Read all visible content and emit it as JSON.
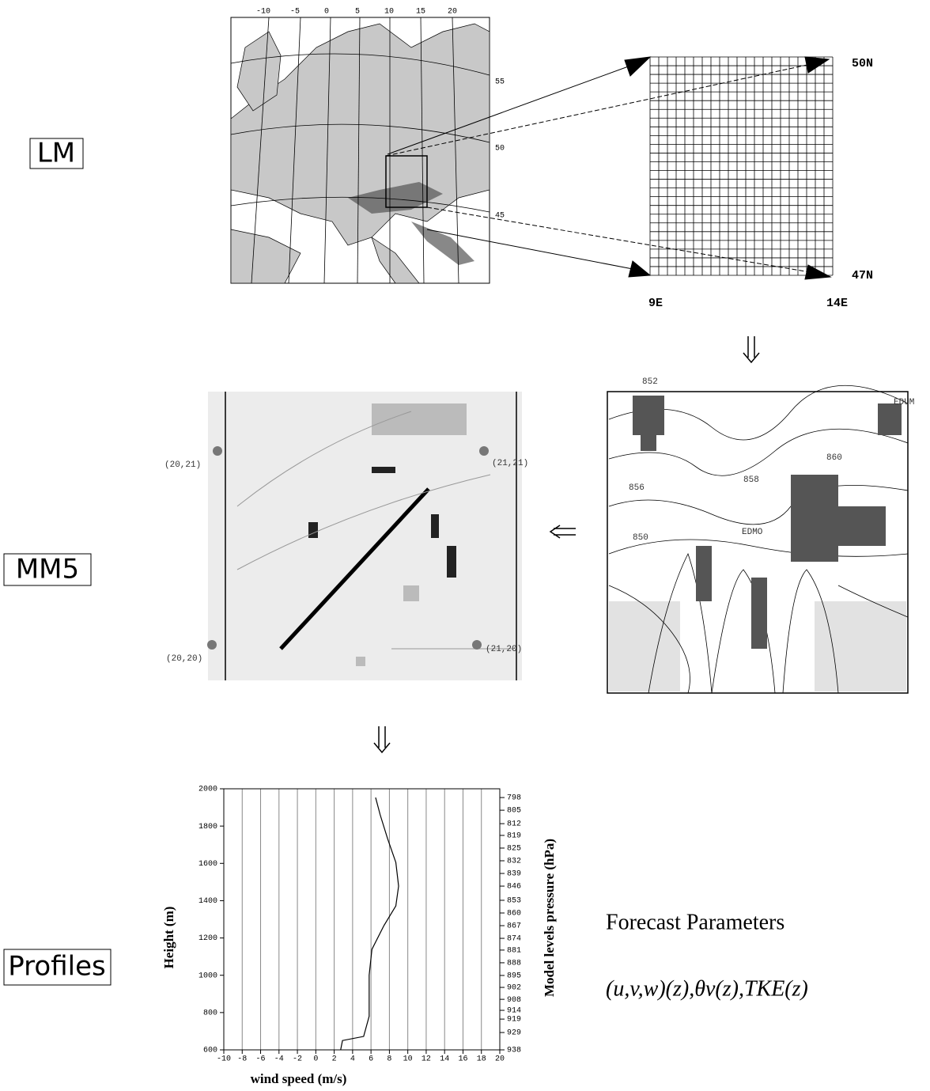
{
  "labels": {
    "lm": "LM",
    "mm5": "MM5",
    "profiles": "Profiles"
  },
  "lm_map": {
    "lon_labels": [
      "-10",
      "-5",
      "0",
      "5",
      "10",
      "15",
      "20"
    ],
    "lat_labels": [
      "55",
      "50",
      "45"
    ]
  },
  "grid": {
    "north": "50N",
    "south": "47N",
    "west": "9E",
    "east": "14E"
  },
  "contour": {
    "labels": [
      "852",
      "856",
      "858",
      "860",
      "850",
      "EDMO",
      "EDUM"
    ]
  },
  "mm5_map": {
    "corners": [
      "(20,21)",
      "(21,21)",
      "(20,20)",
      "(21,20)"
    ]
  },
  "forecast": {
    "title": "Forecast Parameters",
    "formula": "(u,v,w)(z),θv(z),TKE(z)"
  },
  "chart_data": {
    "type": "line",
    "xlabel": "wind speed (m/s)",
    "ylabel": "Height (m)",
    "y2label": "Model levels pressure (hPa)",
    "xlim": [
      -10,
      20
    ],
    "xticks": [
      -10,
      -8,
      -6,
      -4,
      -2,
      0,
      2,
      4,
      6,
      8,
      10,
      12,
      14,
      16,
      18,
      20
    ],
    "ylim": [
      600,
      2000
    ],
    "yticks": [
      600,
      800,
      1000,
      1200,
      1400,
      1600,
      1800,
      2000
    ],
    "y2ticks": [
      {
        "value": 1953,
        "label": "798"
      },
      {
        "value": 1885,
        "label": "805"
      },
      {
        "value": 1813,
        "label": "812"
      },
      {
        "value": 1750,
        "label": "819"
      },
      {
        "value": 1682,
        "label": "825"
      },
      {
        "value": 1614,
        "label": "832"
      },
      {
        "value": 1546,
        "label": "839"
      },
      {
        "value": 1478,
        "label": "846"
      },
      {
        "value": 1402,
        "label": "853"
      },
      {
        "value": 1334,
        "label": "860"
      },
      {
        "value": 1266,
        "label": "867"
      },
      {
        "value": 1198,
        "label": "874"
      },
      {
        "value": 1135,
        "label": "881"
      },
      {
        "value": 1067,
        "label": "888"
      },
      {
        "value": 999,
        "label": "895"
      },
      {
        "value": 935,
        "label": "902"
      },
      {
        "value": 871,
        "label": "908"
      },
      {
        "value": 812,
        "label": "914"
      },
      {
        "value": 765,
        "label": "919"
      },
      {
        "value": 693,
        "label": "929"
      },
      {
        "value": 600,
        "label": "938"
      }
    ],
    "grid": true,
    "color": "#000000",
    "x": [
      2.7,
      2.9,
      5.2,
      5.8,
      5.8,
      6.1,
      7.4,
      8.7,
      9.0,
      8.7,
      7.8,
      7.0,
      6.5
    ],
    "y": [
      600,
      650,
      672,
      780,
      1000,
      1139,
      1266,
      1372,
      1478,
      1605,
      1733,
      1860,
      1953
    ]
  }
}
